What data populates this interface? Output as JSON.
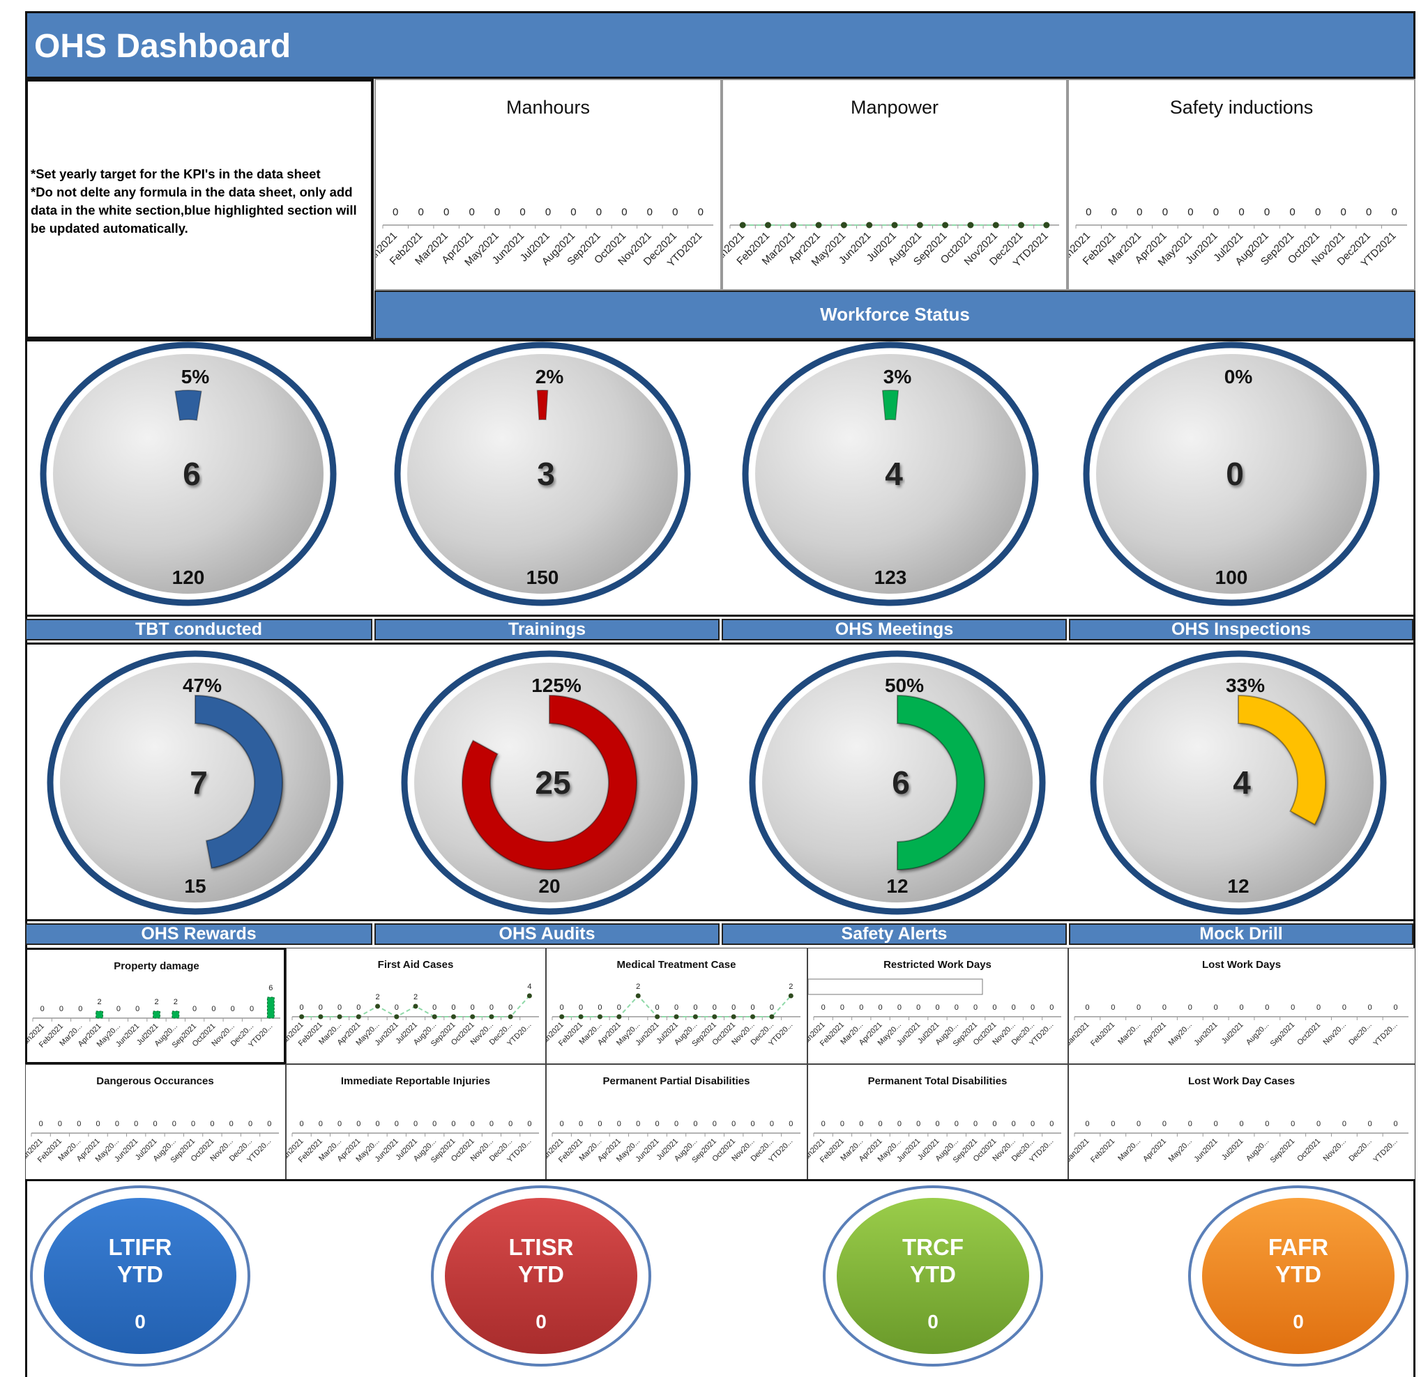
{
  "header": {
    "title": "OHS Dashboard"
  },
  "note": {
    "line1": "*Set yearly target for the KPI's in the data sheet",
    "line2": "*Do not delte any formula in the data sheet, only add data in the white section,blue highlighted section will be updated automatically."
  },
  "workforce_status_label": "Workforce Status",
  "colors": {
    "header": "#4f81bd",
    "blue": "#2e5f9e",
    "red": "#c00000",
    "green": "#00b050",
    "yellow": "#ffc000",
    "gauge_border": "#1f497d"
  },
  "month_labels": [
    "Jan2021",
    "Feb2021",
    "Mar2021",
    "Apr2021",
    "May2021",
    "Jun2021",
    "Jul2021",
    "Aug2021",
    "Sep2021",
    "Oct2021",
    "Nov2021",
    "Dec2021",
    "YTD2021"
  ],
  "month_labels_short": [
    "Jan2021",
    "Feb2021",
    "Mar20...",
    "Apr2021",
    "May20...",
    "Jun2021",
    "Jul2021",
    "Aug20...",
    "Sep2021",
    "Oct2021",
    "Nov20...",
    "Dec20...",
    "YTD20..."
  ],
  "chart_data": [
    {
      "id": "manhours",
      "title": "Manhours",
      "type": "bar",
      "values": [
        0,
        0,
        0,
        0,
        0,
        0,
        0,
        0,
        0,
        0,
        0,
        0,
        0
      ],
      "data_labels": true
    },
    {
      "id": "manpower",
      "title": "Manpower",
      "type": "line",
      "values": [
        0,
        0,
        0,
        0,
        0,
        0,
        0,
        0,
        0,
        0,
        0,
        0,
        0
      ],
      "data_labels": false
    },
    {
      "id": "safety-inductions",
      "title": "Safety inductions",
      "type": "bar",
      "values": [
        0,
        0,
        0,
        0,
        0,
        0,
        0,
        0,
        0,
        0,
        0,
        0,
        0
      ],
      "data_labels": true
    },
    {
      "id": "property-damage",
      "title": "Property damage",
      "type": "bar",
      "values": [
        0,
        0,
        0,
        2,
        0,
        0,
        2,
        2,
        0,
        0,
        0,
        0,
        6
      ],
      "data_labels": true
    },
    {
      "id": "first-aid-cases",
      "title": "First Aid Cases",
      "type": "line",
      "values": [
        0,
        0,
        0,
        0,
        2,
        0,
        2,
        0,
        0,
        0,
        0,
        0,
        4
      ],
      "data_labels": true
    },
    {
      "id": "medical-treatment-case",
      "title": "Medical Treatment Case",
      "type": "line",
      "values": [
        0,
        0,
        0,
        0,
        2,
        0,
        0,
        0,
        0,
        0,
        0,
        0,
        2
      ],
      "data_labels": true
    },
    {
      "id": "restricted-work-days",
      "title": "Restricted Work Days",
      "type": "bar",
      "values": [
        0,
        0,
        0,
        0,
        0,
        0,
        0,
        0,
        0,
        0,
        0,
        0,
        0
      ],
      "data_labels": true
    },
    {
      "id": "lost-work-days",
      "title": "Lost Work Days",
      "type": "bar",
      "values": [
        0,
        0,
        0,
        0,
        0,
        0,
        0,
        0,
        0,
        0,
        0,
        0,
        0
      ],
      "data_labels": true
    },
    {
      "id": "dangerous-occurances",
      "title": "Dangerous Occurances",
      "type": "bar",
      "values": [
        0,
        0,
        0,
        0,
        0,
        0,
        0,
        0,
        0,
        0,
        0,
        0,
        0
      ],
      "data_labels": true
    },
    {
      "id": "immediate-reportable-injuries",
      "title": "Immediate Reportable Injuries",
      "type": "bar",
      "values": [
        0,
        0,
        0,
        0,
        0,
        0,
        0,
        0,
        0,
        0,
        0,
        0,
        0
      ],
      "data_labels": true
    },
    {
      "id": "permanent-partial-disabilities",
      "title": "Permanent Partial Disabilities",
      "type": "bar",
      "values": [
        0,
        0,
        0,
        0,
        0,
        0,
        0,
        0,
        0,
        0,
        0,
        0,
        0
      ],
      "data_labels": true
    },
    {
      "id": "permanent-total-disabilities",
      "title": "Permanent Total Disabilities",
      "type": "bar",
      "values": [
        0,
        0,
        0,
        0,
        0,
        0,
        0,
        0,
        0,
        0,
        0,
        0,
        0
      ],
      "data_labels": true
    },
    {
      "id": "lost-work-day-cases",
      "title": "Lost Work Day Cases",
      "type": "bar",
      "values": [
        0,
        0,
        0,
        0,
        0,
        0,
        0,
        0,
        0,
        0,
        0,
        0,
        0
      ],
      "data_labels": true
    }
  ],
  "gauges_row1": [
    {
      "percent": "5%",
      "fill": 0.05,
      "value": "6",
      "target": "120",
      "color": "#2e5f9e"
    },
    {
      "percent": "2%",
      "fill": 0.02,
      "value": "3",
      "target": "150",
      "color": "#c00000"
    },
    {
      "percent": "3%",
      "fill": 0.03,
      "value": "4",
      "target": "123",
      "color": "#00b050"
    },
    {
      "percent": "0%",
      "fill": 0,
      "value": "0",
      "target": "100",
      "color": "#ffc000"
    }
  ],
  "labels_row1": [
    "TBT conducted",
    "Trainings",
    "OHS Meetings",
    "OHS Inspections"
  ],
  "gauges_row2": [
    {
      "percent": "47%",
      "fill": 0.47,
      "value": "7",
      "target": "15",
      "color": "#2e5f9e"
    },
    {
      "percent": "125%",
      "fill": 0.83,
      "value": "25",
      "target": "20",
      "color": "#c00000"
    },
    {
      "percent": "50%",
      "fill": 0.5,
      "value": "6",
      "target": "12",
      "color": "#00b050"
    },
    {
      "percent": "33%",
      "fill": 0.33,
      "value": "4",
      "target": "12",
      "color": "#ffc000"
    }
  ],
  "labels_row2": [
    "OHS Rewards",
    "OHS Audits",
    "Safety Alerts",
    "Mock Drill"
  ],
  "kpis": [
    {
      "name": "LTIFR",
      "period": "YTD",
      "value": "0",
      "color": "#3a7fd5",
      "dark": "#2260b0"
    },
    {
      "name": "LTISR",
      "period": "YTD",
      "value": "0",
      "color": "#d84a4a",
      "dark": "#a82c2c"
    },
    {
      "name": "TRCF",
      "period": "YTD",
      "value": "0",
      "color": "#9acd4a",
      "dark": "#6a9a2a"
    },
    {
      "name": "FAFR",
      "period": "YTD",
      "value": "0",
      "color": "#f9a03a",
      "dark": "#e07010"
    }
  ]
}
